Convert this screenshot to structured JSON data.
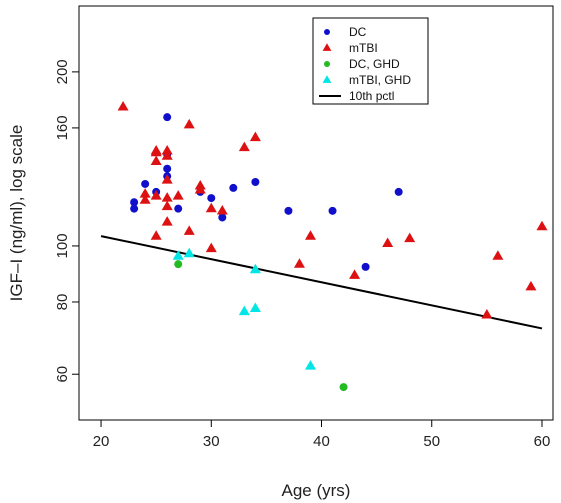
{
  "chart_data": {
    "type": "scatter",
    "title": "",
    "xlabel": "Age (yrs)",
    "ylabel": "IGF–I (ng/ml), log scale",
    "xlim": [
      18,
      61
    ],
    "ylim": [
      50,
      260
    ],
    "y_scale": "log",
    "x_ticks": [
      20,
      30,
      40,
      50,
      60
    ],
    "x_tick_labels": [
      "20",
      "30",
      "40",
      "50",
      "60"
    ],
    "y_ticks": [
      60,
      80,
      100,
      160,
      200
    ],
    "y_tick_labels": [
      "60",
      "80",
      "100",
      "160",
      "200"
    ],
    "grid": false,
    "legend_position": "top-right",
    "series": [
      {
        "name": "DC",
        "marker": "circle",
        "color": "#1010cc",
        "points": [
          [
            23,
            116
          ],
          [
            23,
            119
          ],
          [
            24,
            128
          ],
          [
            25,
            124
          ],
          [
            26,
            167
          ],
          [
            26,
            144
          ],
          [
            26,
            136
          ],
          [
            26,
            132
          ],
          [
            27,
            116
          ],
          [
            29,
            124
          ],
          [
            30,
            121
          ],
          [
            31,
            112
          ],
          [
            32,
            126
          ],
          [
            34,
            129
          ],
          [
            37,
            115
          ],
          [
            41,
            115
          ],
          [
            44,
            92
          ],
          [
            47,
            124
          ]
        ]
      },
      {
        "name": "mTBI",
        "marker": "triangle",
        "color": "#dd1111",
        "points": [
          [
            22,
            174
          ],
          [
            24,
            123
          ],
          [
            24,
            120
          ],
          [
            25,
            146
          ],
          [
            25,
            145
          ],
          [
            25,
            140
          ],
          [
            25,
            122
          ],
          [
            25,
            104
          ],
          [
            26,
            146
          ],
          [
            26,
            143
          ],
          [
            26,
            130
          ],
          [
            26,
            121
          ],
          [
            26,
            117
          ],
          [
            26,
            110
          ],
          [
            27,
            122
          ],
          [
            28,
            162
          ],
          [
            28,
            106
          ],
          [
            29,
            127
          ],
          [
            29,
            125
          ],
          [
            30,
            116
          ],
          [
            30,
            99
          ],
          [
            31,
            115
          ],
          [
            33,
            148
          ],
          [
            34,
            154
          ],
          [
            38,
            93
          ],
          [
            39,
            104
          ],
          [
            43,
            89
          ],
          [
            46,
            101
          ],
          [
            48,
            103
          ],
          [
            55,
            76
          ],
          [
            56,
            96
          ],
          [
            59,
            85
          ],
          [
            60,
            108
          ]
        ]
      },
      {
        "name": "DC, GHD",
        "marker": "circle",
        "color": "#22bb22",
        "points": [
          [
            27,
            93
          ],
          [
            42,
            57
          ]
        ]
      },
      {
        "name": "mTBI, GHD",
        "marker": "triangle",
        "color": "#00e5e5",
        "points": [
          [
            27,
            96
          ],
          [
            28,
            97
          ],
          [
            33,
            77
          ],
          [
            34,
            78
          ],
          [
            34,
            91
          ],
          [
            39,
            62
          ]
        ]
      }
    ],
    "reference_line": {
      "name": "10th pctl",
      "color": "#000000",
      "x": [
        20,
        60
      ],
      "y": [
        104,
        72
      ]
    }
  }
}
